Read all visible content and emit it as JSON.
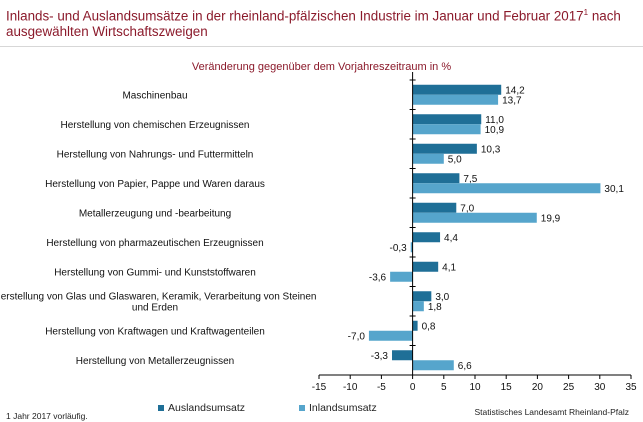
{
  "title": "Inlands- und Auslandsumsätze in der rheinland-pfälzischen Industrie im Januar und Februar 2017",
  "title_sup": "1",
  "title_end": " nach ausgewählten Wirtschaftszweigen",
  "footnote": "1 Jahr 2017 vorläufig.",
  "source": "Statistisches Landesamt Rheinland-Pfalz",
  "colors": {
    "ausland": "#1f6f97",
    "inland": "#56a5cc",
    "title": "#8b1a2b"
  },
  "chart_data": {
    "type": "bar",
    "orientation": "horizontal",
    "subtitle": "Veränderung gegenüber dem Vorjahreszeitraum in %",
    "categories": [
      "Maschinenbau",
      "Herstellung von chemischen Erzeugnissen",
      "Herstellung von Nahrungs- und Futtermitteln",
      "Herstellung von Papier, Pappe und Waren daraus",
      "Metallerzeugung und -bearbeitung",
      "Herstellung von pharmazeutischen Erzeugnissen",
      "Herstellung von Gummi- und Kunststoffwaren",
      "Herstellung von Glas und Glaswaren, Keramik, Verarbeitung von Steinen und Erden",
      "Herstellung von Kraftwagen und Kraftwagenteilen",
      "Herstellung von Metallerzeugnissen"
    ],
    "series": [
      {
        "name": "Auslandsumsatz",
        "values": [
          14.2,
          11.0,
          10.3,
          7.5,
          7.0,
          4.4,
          4.1,
          3.0,
          0.8,
          -3.3
        ],
        "labels": [
          "14,2",
          "11,0",
          "10,3",
          "7,5",
          "7,0",
          "4,4",
          "4,1",
          "3,0",
          "0,8",
          "-3,3"
        ]
      },
      {
        "name": "Inlandsumsatz",
        "values": [
          13.7,
          10.9,
          5.0,
          30.1,
          19.9,
          -0.3,
          -3.6,
          1.8,
          -7.0,
          6.6
        ],
        "labels": [
          "13,7",
          "10,9",
          "5,0",
          "30,1",
          "19,9",
          "-0,3",
          "-3,6",
          "1,8",
          "-7,0",
          "6,6"
        ]
      }
    ],
    "xlim": [
      -15,
      35
    ],
    "xticks": [
      -15,
      -10,
      -5,
      0,
      5,
      10,
      15,
      20,
      25,
      30,
      35
    ],
    "xtick_labels": [
      "-15",
      "-10",
      "-5",
      "0",
      "5",
      "10",
      "15",
      "20",
      "25",
      "30",
      "35"
    ],
    "grid": false,
    "legend_position": "bottom"
  }
}
